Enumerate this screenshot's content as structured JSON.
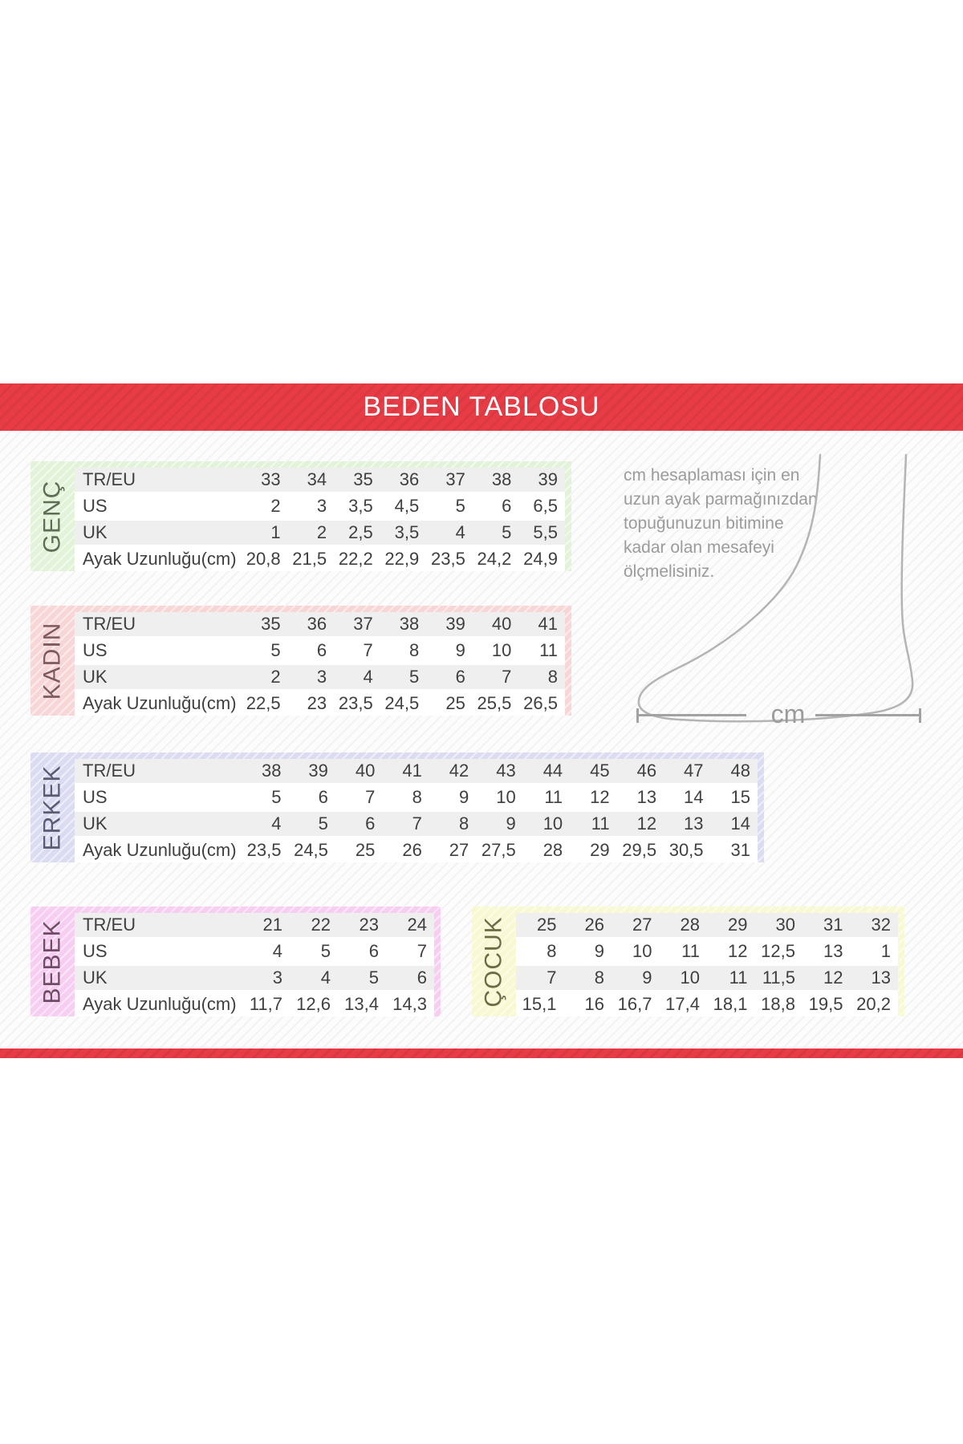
{
  "banner": {
    "title": "BEDEN TABLOSU"
  },
  "measure_note": {
    "lines": [
      "cm hesaplaması için en",
      "uzun ayak parmağınızdan",
      "topuğunuzun bitimine",
      "kadar olan mesafeyi",
      "ölçmelisiniz."
    ]
  },
  "measure_unit": "cm",
  "colors": {
    "banner_red": "#e73c46",
    "row_stripe_gray": "#efefef",
    "table_text": "#3f3f3f",
    "note_text": "#9b9b9b",
    "line_gray": "#a2a2a2",
    "foot_outline": "#b4b4b4"
  },
  "size_tables": [
    {
      "id": "genc",
      "label": "GENÇ",
      "panel_color": "#e2f3da",
      "label_color": "#5c6e54",
      "row_labels": [
        "TR/EU",
        "US",
        "UK",
        "Ayak Uzunluğu(cm)"
      ],
      "rows": [
        [
          "33",
          "34",
          "35",
          "36",
          "37",
          "38",
          "39"
        ],
        [
          "2",
          "3",
          "3,5",
          "4,5",
          "5",
          "6",
          "6,5"
        ],
        [
          "1",
          "2",
          "2,5",
          "3,5",
          "4",
          "5",
          "5,5"
        ],
        [
          "20,8",
          "21,5",
          "22,2",
          "22,9",
          "23,5",
          "24,2",
          "24,9"
        ]
      ]
    },
    {
      "id": "kadin",
      "label": "KADIN",
      "panel_color": "#f8d6d8",
      "label_color": "#7c5a60",
      "row_labels": [
        "TR/EU",
        "US",
        "UK",
        "Ayak Uzunluğu(cm)"
      ],
      "rows": [
        [
          "35",
          "36",
          "37",
          "38",
          "39",
          "40",
          "41"
        ],
        [
          "5",
          "6",
          "7",
          "8",
          "9",
          "10",
          "11"
        ],
        [
          "2",
          "3",
          "4",
          "5",
          "6",
          "7",
          "8"
        ],
        [
          "22,5",
          "23",
          "23,5",
          "24,5",
          "25",
          "25,5",
          "26,5"
        ]
      ]
    },
    {
      "id": "erkek",
      "label": "ERKEK",
      "panel_color": "#dbdbf2",
      "label_color": "#5a5a74",
      "row_labels": [
        "TR/EU",
        "US",
        "UK",
        "Ayak Uzunluğu(cm)"
      ],
      "rows": [
        [
          "38",
          "39",
          "40",
          "41",
          "42",
          "43",
          "44",
          "45",
          "46",
          "47",
          "48"
        ],
        [
          "5",
          "6",
          "7",
          "8",
          "9",
          "10",
          "11",
          "12",
          "13",
          "14",
          "15"
        ],
        [
          "4",
          "5",
          "6",
          "7",
          "8",
          "9",
          "10",
          "11",
          "12",
          "13",
          "14"
        ],
        [
          "23,5",
          "24,5",
          "25",
          "26",
          "27",
          "27,5",
          "28",
          "29",
          "29,5",
          "30,5",
          "31"
        ]
      ]
    },
    {
      "id": "bebek",
      "label": "BEBEK",
      "panel_color": "#f7cdf2",
      "label_color": "#6e4c66",
      "row_labels": [
        "TR/EU",
        "US",
        "UK",
        "Ayak Uzunluğu(cm)"
      ],
      "rows": [
        [
          "21",
          "22",
          "23",
          "24"
        ],
        [
          "4",
          "5",
          "6",
          "7"
        ],
        [
          "3",
          "4",
          "5",
          "6"
        ],
        [
          "11,7",
          "12,6",
          "13,4",
          "14,3"
        ]
      ]
    },
    {
      "id": "cocuk",
      "label": "ÇOCUK",
      "panel_color": "#f8f8d2",
      "label_color": "#6c6c46",
      "row_labels": [],
      "rows": [
        [
          "25",
          "26",
          "27",
          "28",
          "29",
          "30",
          "31",
          "32"
        ],
        [
          "8",
          "9",
          "10",
          "11",
          "12",
          "12,5",
          "13",
          "1"
        ],
        [
          "7",
          "8",
          "9",
          "10",
          "11",
          "11,5",
          "12",
          "13"
        ],
        [
          "15,1",
          "16",
          "16,7",
          "17,4",
          "18,1",
          "18,8",
          "19,5",
          "20,2"
        ]
      ]
    }
  ]
}
